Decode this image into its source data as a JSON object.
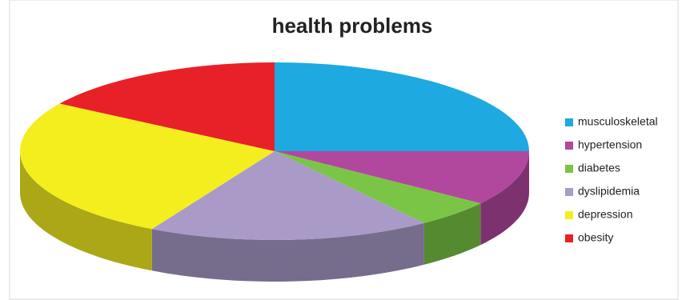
{
  "chart_data": {
    "type": "pie3d",
    "title": "health problems",
    "categories": [
      "musculoskeletal",
      "hypertension",
      "diabetes",
      "dyslipidemia",
      "depression",
      "obesity"
    ],
    "values": [
      25,
      10,
      5,
      18,
      26,
      16
    ],
    "colors": [
      "#1ea9e1",
      "#b1489d",
      "#7bc546",
      "#a99ac8",
      "#f4ee1f",
      "#e82128"
    ],
    "legend": "right"
  }
}
